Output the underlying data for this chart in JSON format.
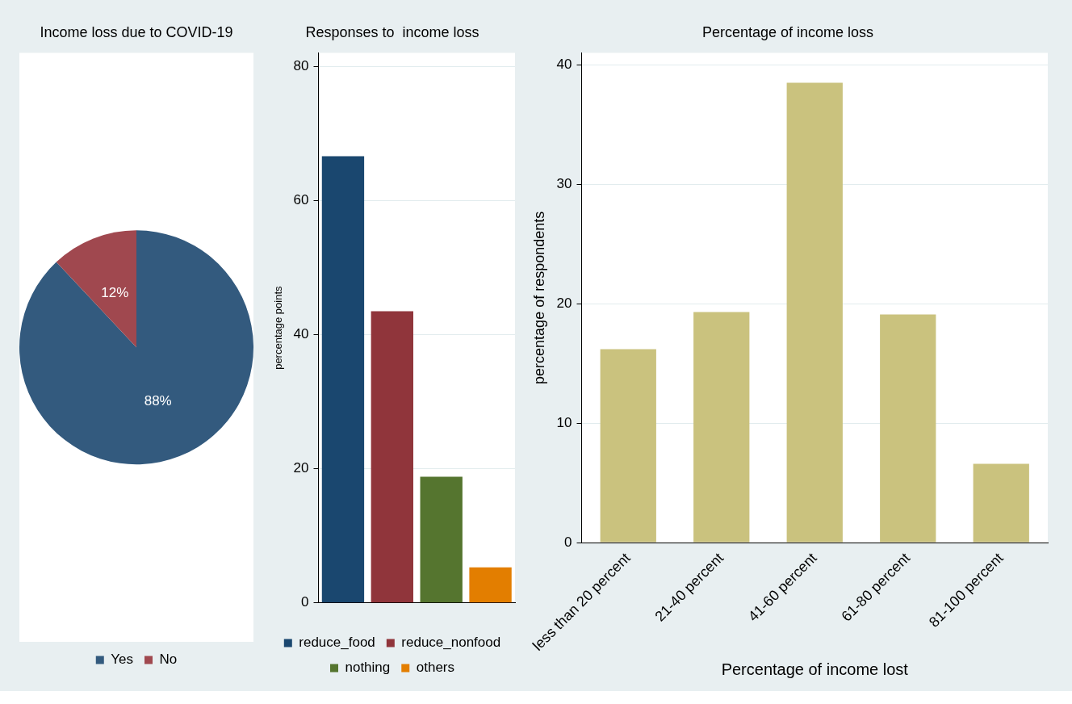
{
  "chart_data": [
    {
      "type": "pie",
      "title": "Income loss due to COVID-19",
      "categories": [
        "Yes",
        "No"
      ],
      "values": [
        88,
        12
      ],
      "colors": [
        "#335a7e",
        "#a0484f"
      ],
      "value_labels": [
        "88%",
        "12%"
      ],
      "legend": "bottom"
    },
    {
      "type": "bar",
      "title": "Responses to  income loss",
      "ylabel": "percentage points",
      "categories": [
        null
      ],
      "series": [
        {
          "name": "reduce_food",
          "color": "#1a476f",
          "values": [
            66.6
          ]
        },
        {
          "name": "reduce_nonfood",
          "color": "#90353b",
          "values": [
            43.5
          ]
        },
        {
          "name": "nothing",
          "color": "#55752f",
          "values": [
            18.8
          ]
        },
        {
          "name": "others",
          "color": "#e37e00",
          "values": [
            5.3
          ]
        }
      ],
      "ylim": [
        0,
        82
      ],
      "yticks": [
        0,
        20,
        40,
        60,
        80
      ],
      "grid": "y",
      "legend": "bottom"
    },
    {
      "type": "bar",
      "title": "Percentage of income loss",
      "xlabel": "Percentage of income lost",
      "ylabel": "percentage of respondents",
      "categories": [
        "less than 20 percent",
        "21-40 percent",
        "41-60 percent",
        "61-80 percent",
        "81-100 percent"
      ],
      "values": [
        16.2,
        19.3,
        38.5,
        19.1,
        6.6
      ],
      "color": "#cac27e",
      "ylim": [
        0,
        41
      ],
      "yticks": [
        0,
        10,
        20,
        30,
        40
      ],
      "grid": "y"
    }
  ]
}
